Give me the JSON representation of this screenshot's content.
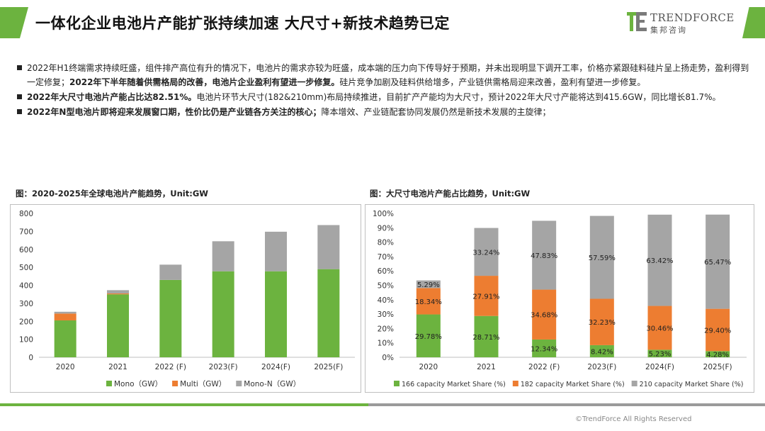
{
  "header": {
    "title": "一体化企业电池片产能扩张持续加速 大尺寸+新技术趋势已定",
    "logo_en": "TRENDFORCE",
    "logo_cn": "集邦咨询"
  },
  "bullets": [
    {
      "parts": [
        {
          "text": "2022年H1终端需求持续旺盛，组件排产高位有升的情况下，电池片的需求亦较为旺盛，成本端的压力向下传导好于预期，并未出现明显下调开工率，价格亦紧跟硅料硅片呈上扬走势，盈利得到一定修复；",
          "bold": false
        },
        {
          "text": "2022年下半年随着供需格局的改善，电池片企业盈利有望进一步修复。",
          "bold": true
        },
        {
          "text": "硅片竞争加剧及硅料供给增多，产业链供需格局迎来改善，盈利有望进一步修复。",
          "bold": false
        }
      ]
    },
    {
      "parts": [
        {
          "text": "2022年大尺寸电池片产能占比达82.51%。",
          "bold": true
        },
        {
          "text": "电池片环节大尺寸(182&210mm)布局持续推进，目前扩产产能均为大尺寸，预计2022年大尺寸产能将达到415.6GW，同比增长81.7%。",
          "bold": false
        }
      ]
    },
    {
      "parts": [
        {
          "text": "2022年N型电池片即将迎来发展窗口期，性价比仍是产业链各方关注的核心；",
          "bold": true
        },
        {
          "text": "降本增效、产业链配套协同发展仍然是新技术发展的主旋律；",
          "bold": false
        }
      ]
    }
  ],
  "chart_data": [
    {
      "type": "bar",
      "stacked": true,
      "title": "图：2020-2025年全球电池片产能趋势，Unit:GW",
      "categories": [
        "2020",
        "2021",
        "2022 (F)",
        "2023(F)",
        "2024(F)",
        "2025(F)"
      ],
      "series": [
        {
          "name": "Mono（GW）",
          "color": "#6cb33f",
          "values": [
            205,
            350,
            430,
            478,
            478,
            490
          ]
        },
        {
          "name": "Multi（GW）",
          "color": "#ed7d31",
          "values": [
            38,
            5,
            0,
            0,
            0,
            0
          ]
        },
        {
          "name": "Mono-N（GW）",
          "color": "#a5a5a5",
          "values": [
            10,
            18,
            85,
            167,
            220,
            245
          ]
        }
      ],
      "ylim": [
        0,
        800
      ],
      "yticks": [
        0,
        100,
        200,
        300,
        400,
        500,
        600,
        700,
        800
      ],
      "grid": false,
      "legend": "bottom"
    },
    {
      "type": "bar",
      "stacked": true,
      "title": "图：大尺寸电池片产能占比趋势，Unit:GW",
      "categories": [
        "2020",
        "2021",
        "2022 (F)",
        "2023(F)",
        "2024(F)",
        "2025(F)"
      ],
      "series": [
        {
          "name": "166 capacity Market Share (%)",
          "color": "#6cb33f",
          "values": [
            29.78,
            28.71,
            12.34,
            8.42,
            5.23,
            4.28
          ],
          "labels": [
            "29.78%",
            "28.71%",
            "12.34%",
            "8.42%",
            "5.23%",
            "4.28%"
          ]
        },
        {
          "name": "182 capacity Market Share (%)",
          "color": "#ed7d31",
          "values": [
            18.34,
            27.91,
            34.68,
            32.23,
            30.46,
            29.4
          ],
          "labels": [
            "18.34%",
            "27.91%",
            "34.68%",
            "32.23%",
            "30.46%",
            "29.40%"
          ]
        },
        {
          "name": "210 capacity Market Share (%)",
          "color": "#a5a5a5",
          "values": [
            5.29,
            33.24,
            47.83,
            57.59,
            63.42,
            65.47
          ],
          "labels": [
            "5.29%",
            "33.24%",
            "47.83%",
            "57.59%",
            "63.42%",
            "65.47%"
          ]
        }
      ],
      "ylim": [
        0,
        100
      ],
      "yticks": [
        "0%",
        "10%",
        "20%",
        "30%",
        "40%",
        "50%",
        "60%",
        "70%",
        "80%",
        "90%",
        "100%"
      ],
      "grid": false,
      "legend": "bottom"
    }
  ],
  "footer": {
    "copyright": "©TrendForce All Rights Reserved"
  }
}
